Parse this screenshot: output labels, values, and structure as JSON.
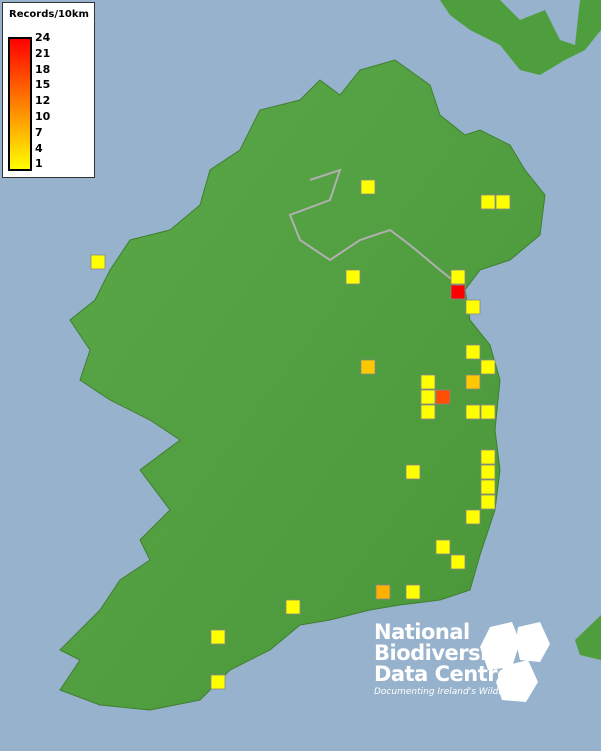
{
  "legend": {
    "title": "Records/10km",
    "ticks": [
      "24",
      "21",
      "18",
      "15",
      "12",
      "10",
      "7",
      "4",
      "1"
    ],
    "color_high": "#ff0000",
    "color_mid": "#ff8000",
    "color_low": "#ffff00"
  },
  "logo": {
    "lines": [
      "National",
      "Biodiversity",
      "Data Centre"
    ],
    "tagline": "Documenting Ireland's Wildlife"
  },
  "colors": {
    "sea": "#97b2cc",
    "land": "#4f9e3e",
    "boundary": "#b0b0b0"
  },
  "grid_squares": [
    {
      "easting_km": 240,
      "northing_km": 380,
      "records": 1
    },
    {
      "easting_km": 320,
      "northing_km": 370,
      "records": 1
    },
    {
      "easting_km": 330,
      "northing_km": 370,
      "records": 1
    },
    {
      "easting_km": 60,
      "northing_km": 330,
      "records": 1
    },
    {
      "easting_km": 230,
      "northing_km": 320,
      "records": 1
    },
    {
      "easting_km": 300,
      "northing_km": 320,
      "records": 1
    },
    {
      "easting_km": 300,
      "northing_km": 310,
      "records": 24
    },
    {
      "easting_km": 310,
      "northing_km": 300,
      "records": 1
    },
    {
      "easting_km": 310,
      "northing_km": 270,
      "records": 1
    },
    {
      "easting_km": 240,
      "northing_km": 260,
      "records": 6
    },
    {
      "easting_km": 320,
      "northing_km": 260,
      "records": 1
    },
    {
      "easting_km": 280,
      "northing_km": 250,
      "records": 1
    },
    {
      "easting_km": 310,
      "northing_km": 250,
      "records": 6
    },
    {
      "easting_km": 280,
      "northing_km": 240,
      "records": 1
    },
    {
      "easting_km": 290,
      "northing_km": 240,
      "records": 17
    },
    {
      "easting_km": 280,
      "northing_km": 230,
      "records": 1
    },
    {
      "easting_km": 310,
      "northing_km": 230,
      "records": 1
    },
    {
      "easting_km": 320,
      "northing_km": 230,
      "records": 1
    },
    {
      "easting_km": 270,
      "northing_km": 190,
      "records": 1
    },
    {
      "easting_km": 320,
      "northing_km": 200,
      "records": 1
    },
    {
      "easting_km": 320,
      "northing_km": 190,
      "records": 1
    },
    {
      "easting_km": 320,
      "northing_km": 180,
      "records": 1
    },
    {
      "easting_km": 320,
      "northing_km": 170,
      "records": 1
    },
    {
      "easting_km": 310,
      "northing_km": 160,
      "records": 1
    },
    {
      "easting_km": 290,
      "northing_km": 140,
      "records": 1
    },
    {
      "easting_km": 300,
      "northing_km": 130,
      "records": 1
    },
    {
      "easting_km": 250,
      "northing_km": 110,
      "records": 8
    },
    {
      "easting_km": 270,
      "northing_km": 110,
      "records": 1
    },
    {
      "easting_km": 190,
      "northing_km": 100,
      "records": 1
    },
    {
      "easting_km": 140,
      "northing_km": 80,
      "records": 1
    },
    {
      "easting_km": 140,
      "northing_km": 50,
      "records": 1
    }
  ]
}
